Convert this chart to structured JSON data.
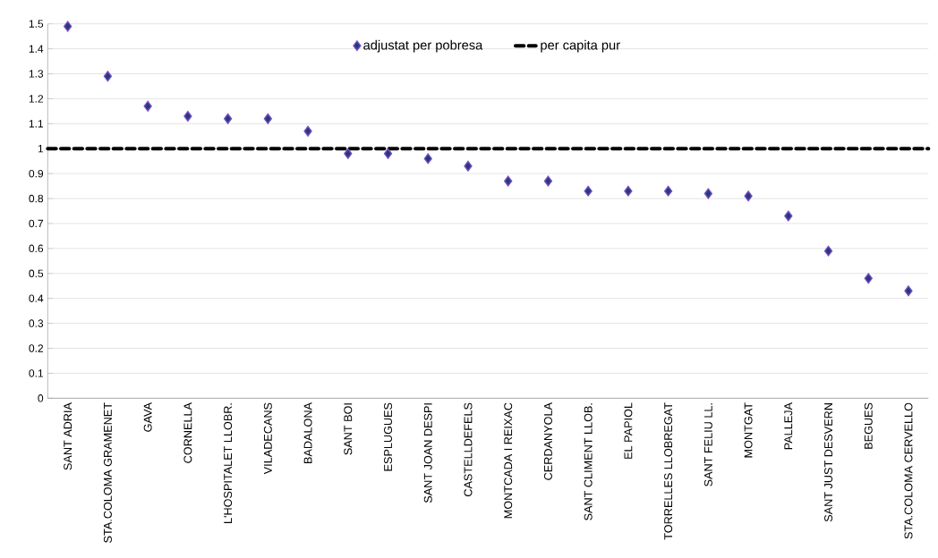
{
  "chart_data": {
    "type": "scatter",
    "categories": [
      "SANT ADRIA",
      "STA.COLOMA GRAMENET",
      "GAVA",
      "CORNELLA",
      "L'HOSPITALET LLOBR.",
      "VILADECANS",
      "BADALONA",
      "SANT BOI",
      "ESPLUGUES",
      "SANT JOAN DESPI",
      "CASTELLDEFELS",
      "MONTCADA I REIXAC",
      "CERDANYOLA",
      "SANT CLIMENT LLOB.",
      "EL PAPIOL",
      "TORRELLES LLOBREGAT",
      "SANT FELIU LL.",
      "MONTGAT",
      "PALLEJA",
      "SANT JUST DESVERN",
      "BEGUES",
      "STA.COLOMA CERVELLO"
    ],
    "series": [
      {
        "name": "adjustat per pobresa",
        "color": "#1f3f78",
        "values": [
          1.49,
          1.29,
          1.17,
          1.13,
          1.12,
          1.12,
          1.07,
          0.98,
          0.98,
          0.96,
          0.93,
          0.87,
          0.87,
          0.83,
          0.83,
          0.83,
          0.82,
          0.81,
          0.73,
          0.59,
          0.48,
          0.43
        ]
      }
    ],
    "ref_lines": [
      {
        "axis": "y",
        "value": 1,
        "label": "per capita pur",
        "color": "#000000",
        "line_style": "dashed"
      }
    ],
    "ylim": [
      0,
      1.5
    ],
    "yticks": [
      0,
      0.1,
      0.2,
      0.3,
      0.4,
      0.5,
      0.6,
      0.7,
      0.8,
      0.9,
      1,
      1.1,
      1.2,
      1.3,
      1.4,
      1.5
    ],
    "grid": "y",
    "legend": "top",
    "marker": "diamond"
  }
}
